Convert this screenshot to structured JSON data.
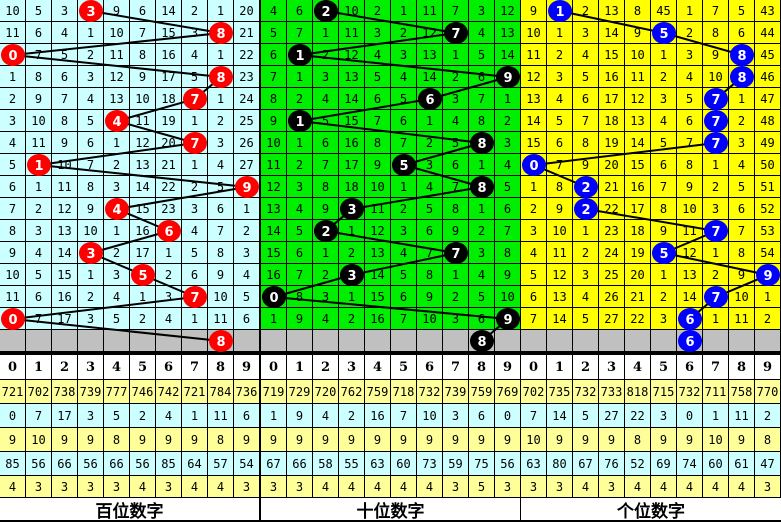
{
  "chart_data": {
    "type": "table",
    "panels": [
      {
        "name": "百位数字",
        "bg_color": "#ccffff",
        "ball_color": "#ff0000",
        "line_color": "#000000",
        "rows": [
          {
            "cells": [
              10,
              5,
              3,
              3,
              9,
              6,
              14,
              2,
              1,
              20
            ],
            "hit": 3
          },
          {
            "cells": [
              11,
              6,
              4,
              1,
              10,
              7,
              15,
              3,
              8,
              21
            ],
            "hit": 8
          },
          {
            "cells": [
              0,
              7,
              5,
              2,
              11,
              8,
              16,
              4,
              1,
              22
            ],
            "hit": 0
          },
          {
            "cells": [
              1,
              8,
              6,
              3,
              12,
              9,
              17,
              5,
              8,
              23
            ],
            "hit": 8
          },
          {
            "cells": [
              2,
              9,
              7,
              4,
              13,
              10,
              18,
              7,
              1,
              24
            ],
            "hit": 7
          },
          {
            "cells": [
              3,
              10,
              8,
              5,
              4,
              11,
              19,
              1,
              2,
              25
            ],
            "hit": 4
          },
          {
            "cells": [
              4,
              11,
              9,
              6,
              1,
              12,
              20,
              7,
              3,
              26
            ],
            "hit": 7
          },
          {
            "cells": [
              5,
              1,
              10,
              7,
              2,
              13,
              21,
              1,
              4,
              27
            ],
            "hit": 1
          },
          {
            "cells": [
              6,
              1,
              11,
              8,
              3,
              14,
              22,
              2,
              5,
              9
            ],
            "hit": 9
          },
          {
            "cells": [
              7,
              2,
              12,
              9,
              4,
              15,
              23,
              3,
              6,
              1
            ],
            "hit": 4
          },
          {
            "cells": [
              8,
              3,
              13,
              10,
              1,
              16,
              6,
              4,
              7,
              2
            ],
            "hit": 6
          },
          {
            "cells": [
              9,
              4,
              14,
              3,
              2,
              17,
              1,
              5,
              8,
              3
            ],
            "hit": 3
          },
          {
            "cells": [
              10,
              5,
              15,
              1,
              3,
              5,
              2,
              6,
              9,
              4
            ],
            "hit": 5
          },
          {
            "cells": [
              11,
              6,
              16,
              2,
              4,
              1,
              3,
              7,
              10,
              5
            ],
            "hit": 7
          },
          {
            "cells": [
              0,
              7,
              17,
              3,
              5,
              2,
              4,
              1,
              11,
              6
            ],
            "hit": 0
          }
        ],
        "next": 8,
        "digits": [
          "0",
          "1",
          "2",
          "3",
          "4",
          "5",
          "6",
          "7",
          "8",
          "9"
        ],
        "stats": [
          [
            721,
            702,
            738,
            739,
            777,
            746,
            742,
            721,
            784,
            736
          ],
          [
            0,
            7,
            17,
            3,
            5,
            2,
            4,
            1,
            11,
            6
          ],
          [
            9,
            10,
            9,
            9,
            8,
            9,
            9,
            9,
            8,
            9
          ],
          [
            85,
            56,
            66,
            56,
            66,
            56,
            85,
            64,
            57,
            54
          ],
          [
            4,
            3,
            3,
            3,
            3,
            4,
            3,
            4,
            4,
            3
          ]
        ]
      },
      {
        "name": "十位数字",
        "bg_color": "#00ee00",
        "ball_color": "#000000",
        "line_color": "#000000",
        "rows": [
          {
            "cells": [
              4,
              6,
              2,
              10,
              2,
              1,
              11,
              7,
              3,
              12
            ],
            "hit": 2
          },
          {
            "cells": [
              5,
              7,
              1,
              11,
              3,
              2,
              12,
              7,
              4,
              13
            ],
            "hit": 7
          },
          {
            "cells": [
              6,
              1,
              2,
              12,
              4,
              3,
              13,
              1,
              5,
              14
            ],
            "hit": 1
          },
          {
            "cells": [
              7,
              1,
              3,
              13,
              5,
              4,
              14,
              2,
              6,
              9
            ],
            "hit": 9
          },
          {
            "cells": [
              8,
              2,
              4,
              14,
              6,
              5,
              6,
              3,
              7,
              1
            ],
            "hit": 6
          },
          {
            "cells": [
              9,
              1,
              5,
              15,
              7,
              6,
              1,
              4,
              8,
              2
            ],
            "hit": 1
          },
          {
            "cells": [
              10,
              1,
              6,
              16,
              8,
              7,
              2,
              5,
              8,
              3
            ],
            "hit": 8
          },
          {
            "cells": [
              11,
              2,
              7,
              17,
              9,
              5,
              3,
              6,
              1,
              4
            ],
            "hit": 5
          },
          {
            "cells": [
              12,
              3,
              8,
              18,
              10,
              1,
              4,
              7,
              8,
              5
            ],
            "hit": 8
          },
          {
            "cells": [
              13,
              4,
              9,
              3,
              11,
              2,
              5,
              8,
              1,
              6
            ],
            "hit": 3
          },
          {
            "cells": [
              14,
              5,
              2,
              1,
              12,
              3,
              6,
              9,
              2,
              7
            ],
            "hit": 2
          },
          {
            "cells": [
              15,
              6,
              1,
              2,
              13,
              4,
              7,
              7,
              3,
              8
            ],
            "hit": 7
          },
          {
            "cells": [
              16,
              7,
              2,
              3,
              14,
              5,
              8,
              1,
              4,
              9
            ],
            "hit": 3
          },
          {
            "cells": [
              0,
              8,
              3,
              1,
              15,
              6,
              9,
              2,
              5,
              10
            ],
            "hit": 0
          },
          {
            "cells": [
              1,
              9,
              4,
              2,
              16,
              7,
              10,
              3,
              6,
              9
            ],
            "hit": 9
          }
        ],
        "next": 8,
        "digits": [
          "0",
          "1",
          "2",
          "3",
          "4",
          "5",
          "6",
          "7",
          "8",
          "9"
        ],
        "stats": [
          [
            719,
            729,
            720,
            762,
            759,
            718,
            732,
            739,
            759,
            769
          ],
          [
            1,
            9,
            4,
            2,
            16,
            7,
            10,
            3,
            6,
            0
          ],
          [
            9,
            9,
            9,
            9,
            9,
            9,
            9,
            9,
            9,
            9
          ],
          [
            67,
            66,
            58,
            55,
            63,
            60,
            73,
            59,
            75,
            56
          ],
          [
            3,
            3,
            4,
            4,
            4,
            4,
            4,
            3,
            5,
            3
          ]
        ]
      },
      {
        "name": "个位数字",
        "bg_color": "#ffff00",
        "ball_color": "#0000ff",
        "line_color": "#000000",
        "rows": [
          {
            "cells": [
              9,
              1,
              2,
              13,
              8,
              45,
              1,
              7,
              5,
              43
            ],
            "hit": 1
          },
          {
            "cells": [
              10,
              1,
              3,
              14,
              9,
              5,
              2,
              8,
              6,
              44
            ],
            "hit": 5
          },
          {
            "cells": [
              11,
              2,
              4,
              15,
              10,
              1,
              3,
              9,
              8,
              45
            ],
            "hit": 8
          },
          {
            "cells": [
              12,
              3,
              5,
              16,
              11,
              2,
              4,
              10,
              8,
              46
            ],
            "hit": 8
          },
          {
            "cells": [
              13,
              4,
              6,
              17,
              12,
              3,
              5,
              7,
              1,
              47
            ],
            "hit": 7
          },
          {
            "cells": [
              14,
              5,
              7,
              18,
              13,
              4,
              6,
              7,
              2,
              48
            ],
            "hit": 7
          },
          {
            "cells": [
              15,
              6,
              8,
              19,
              14,
              5,
              7,
              7,
              3,
              49
            ],
            "hit": 7
          },
          {
            "cells": [
              0,
              7,
              9,
              20,
              15,
              6,
              8,
              1,
              4,
              50
            ],
            "hit": 0
          },
          {
            "cells": [
              1,
              8,
              2,
              21,
              16,
              7,
              9,
              2,
              5,
              51
            ],
            "hit": 2
          },
          {
            "cells": [
              2,
              9,
              2,
              22,
              17,
              8,
              10,
              3,
              6,
              52
            ],
            "hit": 2
          },
          {
            "cells": [
              3,
              10,
              1,
              23,
              18,
              9,
              11,
              7,
              7,
              53
            ],
            "hit": 7
          },
          {
            "cells": [
              4,
              11,
              2,
              24,
              19,
              5,
              12,
              1,
              8,
              54
            ],
            "hit": 5
          },
          {
            "cells": [
              5,
              12,
              3,
              25,
              20,
              1,
              13,
              2,
              9,
              9
            ],
            "hit": 9
          },
          {
            "cells": [
              6,
              13,
              4,
              26,
              21,
              2,
              14,
              7,
              10,
              1
            ],
            "hit": 7
          },
          {
            "cells": [
              7,
              14,
              5,
              27,
              22,
              3,
              6,
              1,
              11,
              2
            ],
            "hit": 6
          }
        ],
        "next": 6,
        "digits": [
          "0",
          "1",
          "2",
          "3",
          "4",
          "5",
          "6",
          "7",
          "8",
          "9"
        ],
        "stats": [
          [
            702,
            735,
            732,
            733,
            818,
            715,
            732,
            711,
            758,
            770
          ],
          [
            7,
            14,
            5,
            27,
            22,
            3,
            0,
            1,
            11,
            2
          ],
          [
            10,
            9,
            9,
            9,
            8,
            9,
            9,
            10,
            9,
            8
          ],
          [
            63,
            80,
            67,
            76,
            52,
            69,
            74,
            60,
            61,
            47
          ],
          [
            3,
            3,
            4,
            3,
            4,
            4,
            4,
            4,
            4,
            3
          ]
        ]
      }
    ],
    "grey_row_color": "#c0c0c0",
    "stat_row_colors": [
      "#ffff99",
      "#ccffff",
      "#ffff99",
      "#ccffff",
      "#ffff99"
    ]
  }
}
